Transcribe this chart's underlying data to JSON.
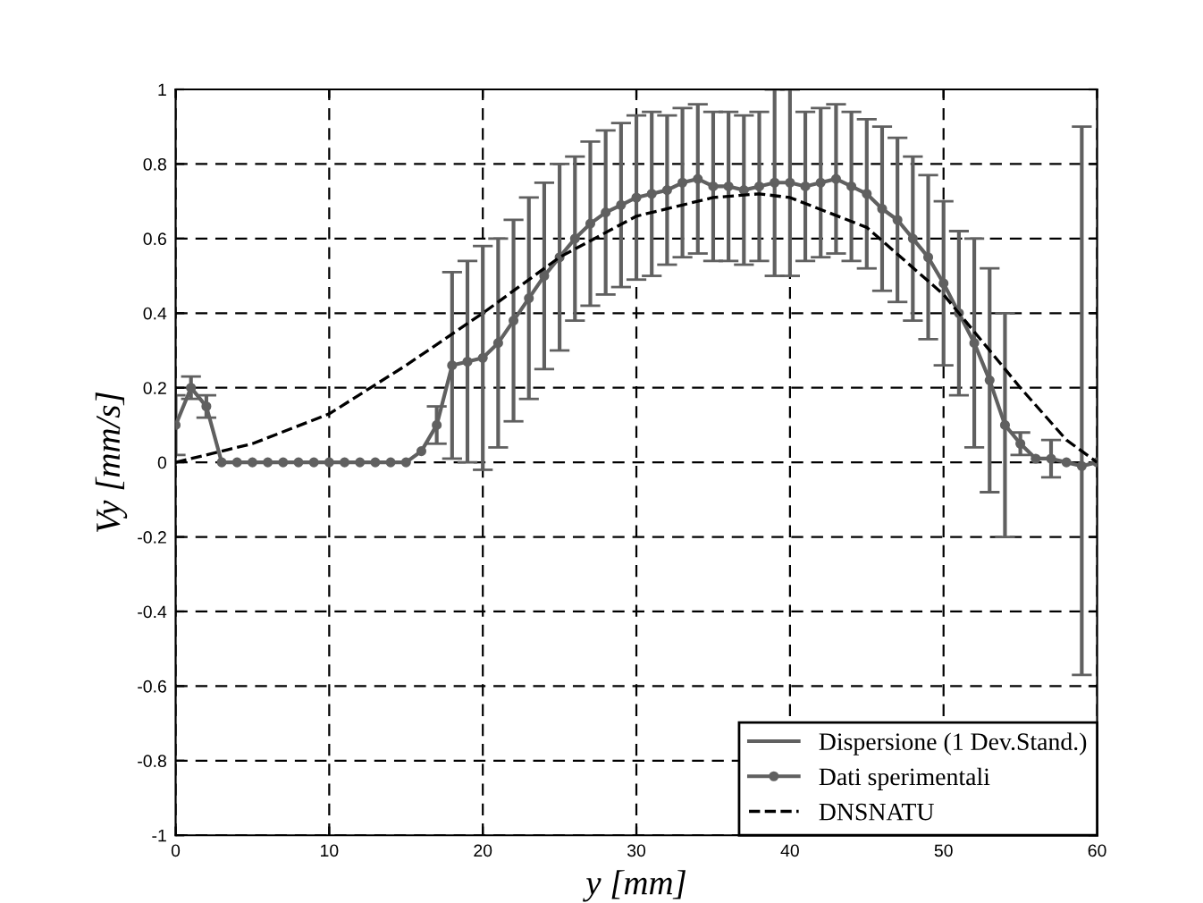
{
  "chart_data": {
    "type": "line",
    "xlabel": "y [mm]",
    "ylabel": "Vy [mm/s]",
    "xlim": [
      0,
      60
    ],
    "ylim": [
      -1,
      1
    ],
    "xticks": [
      0,
      10,
      20,
      30,
      40,
      50,
      60
    ],
    "yticks": [
      -1,
      -0.8,
      -0.6,
      -0.4,
      -0.2,
      0,
      0.2,
      0.4,
      0.6,
      0.8,
      1
    ],
    "grid": true,
    "legend": "bottom right",
    "annotations": [
      "Dispersione (1 Dev.Stand.)"
    ],
    "series": [
      {
        "name": "Dati sperimentali",
        "color": "#606060",
        "marker": "circle",
        "line_style": "solid",
        "x": [
          0,
          1,
          2,
          3,
          4,
          5,
          6,
          7,
          8,
          9,
          10,
          11,
          12,
          13,
          14,
          15,
          16,
          17,
          18,
          19,
          20,
          21,
          22,
          23,
          24,
          25,
          26,
          27,
          28,
          29,
          30,
          31,
          32,
          33,
          34,
          35,
          36,
          37,
          38,
          39,
          40,
          41,
          42,
          43,
          44,
          45,
          46,
          47,
          48,
          49,
          50,
          51,
          52,
          53,
          54,
          55,
          56,
          57,
          58,
          59,
          60
        ],
        "values": [
          0.1,
          0.2,
          0.15,
          0,
          0,
          0,
          0,
          0,
          0,
          0,
          0,
          0,
          0,
          0,
          0,
          0,
          0.03,
          0.1,
          0.26,
          0.27,
          0.28,
          0.32,
          0.38,
          0.44,
          0.5,
          0.55,
          0.6,
          0.64,
          0.67,
          0.69,
          0.71,
          0.72,
          0.73,
          0.75,
          0.76,
          0.74,
          0.74,
          0.73,
          0.74,
          0.75,
          0.75,
          0.74,
          0.75,
          0.76,
          0.74,
          0.72,
          0.68,
          0.65,
          0.6,
          0.55,
          0.48,
          0.4,
          0.32,
          0.22,
          0.1,
          0.05,
          0.01,
          0.01,
          0,
          -0.01,
          0
        ],
        "errors": [
          0.08,
          0.03,
          0.03,
          null,
          null,
          null,
          null,
          null,
          null,
          null,
          null,
          null,
          null,
          null,
          null,
          null,
          null,
          0.05,
          0.25,
          0.27,
          0.3,
          0.28,
          0.27,
          0.27,
          0.25,
          0.25,
          0.22,
          0.22,
          0.22,
          0.22,
          0.22,
          0.22,
          0.2,
          0.2,
          0.2,
          0.2,
          0.2,
          0.2,
          0.2,
          0.25,
          0.25,
          0.2,
          0.2,
          0.2,
          0.2,
          0.2,
          0.22,
          0.22,
          0.22,
          0.22,
          0.22,
          0.22,
          0.28,
          0.3,
          0.3,
          0.03,
          null,
          0.05,
          null,
          [
            -0.57,
            0.9
          ],
          null
        ]
      },
      {
        "name": "DNSNATU",
        "color": "#000000",
        "marker": "none",
        "line_style": "dashed",
        "x": [
          0,
          5,
          10,
          15,
          20,
          25,
          30,
          35,
          38,
          40,
          45,
          50,
          55,
          58,
          60
        ],
        "values": [
          0,
          0.05,
          0.13,
          0.26,
          0.4,
          0.55,
          0.66,
          0.71,
          0.72,
          0.71,
          0.63,
          0.45,
          0.2,
          0.06,
          0
        ]
      }
    ]
  }
}
